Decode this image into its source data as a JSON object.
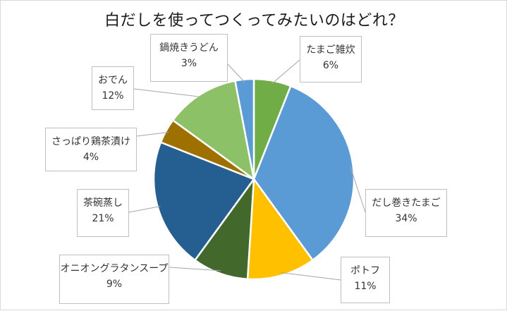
{
  "chart_data": {
    "type": "pie",
    "title": "白だしを使ってつくってみたいのはどれ？",
    "slices": [
      {
        "label": "たまご雑炊",
        "value": 6,
        "display": "6%",
        "color": "#70ad47"
      },
      {
        "label": "だし巻きたまご",
        "value": 34,
        "display": "34%",
        "color": "#5b9bd5"
      },
      {
        "label": "ポトフ",
        "value": 11,
        "display": "11%",
        "color": "#ffc000"
      },
      {
        "label": "オニオングラタンスープ",
        "value": 9,
        "display": "9%",
        "color": "#43682b"
      },
      {
        "label": "茶碗蒸し",
        "value": 21,
        "display": "21%",
        "color": "#255e91"
      },
      {
        "label": "さっぱり鶏茶漬け",
        "value": 4,
        "display": "4%",
        "color": "#9e7000"
      },
      {
        "label": "おでん",
        "value": 12,
        "display": "12%",
        "color": "#8cc168"
      },
      {
        "label": "鍋焼きうどん",
        "value": 3,
        "display": "3%",
        "color": "#5b9bd5"
      }
    ],
    "start_angle_deg": 0,
    "direction": "clockwise",
    "legend": "none"
  }
}
